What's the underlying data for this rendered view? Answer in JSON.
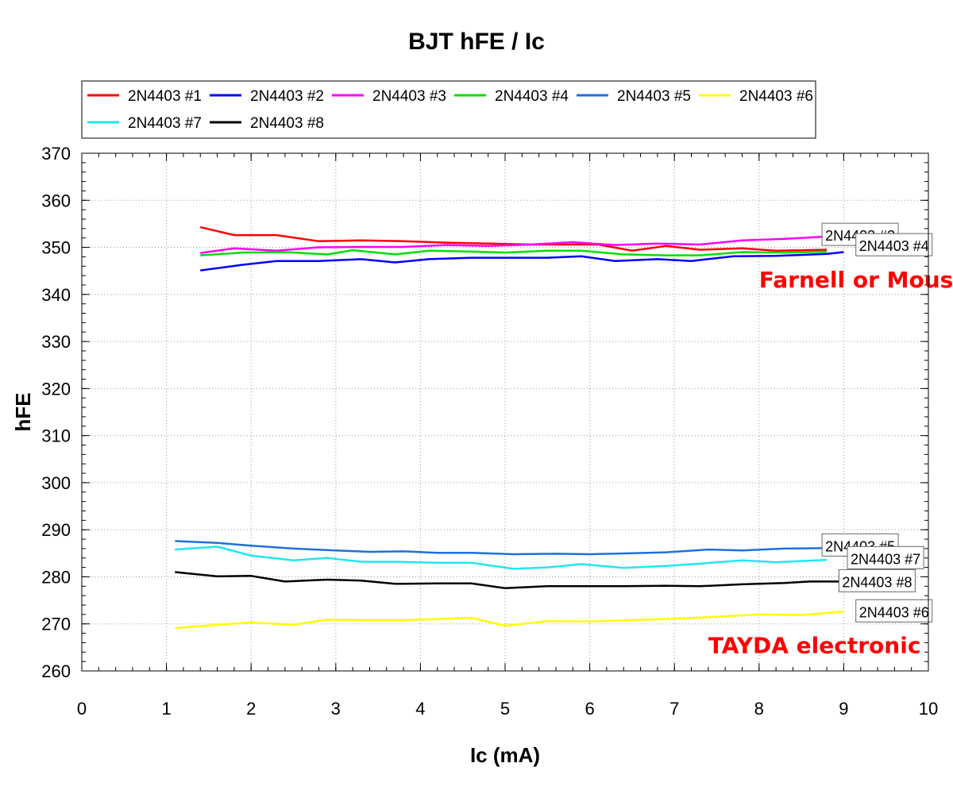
{
  "chart_data": {
    "type": "line",
    "title": "BJT hFE / Ic",
    "xlabel": "Ic (mA)",
    "ylabel": "hFE",
    "xlim": [
      0,
      10
    ],
    "ylim": [
      260,
      370
    ],
    "xticks": [
      0,
      1,
      2,
      3,
      4,
      5,
      6,
      7,
      8,
      9,
      10
    ],
    "yticks": [
      260,
      270,
      280,
      290,
      300,
      310,
      320,
      330,
      340,
      350,
      360,
      370
    ],
    "grid": true,
    "legend_position": "top",
    "series": [
      {
        "name": "2N4403 #1",
        "color": "#ff0000",
        "x": [
          1.4,
          1.8,
          2.3,
          2.8,
          3.3,
          3.8,
          4.3,
          4.8,
          5.3,
          5.8,
          6.1,
          6.5,
          6.9,
          7.3,
          7.8,
          8.2,
          8.8
        ],
        "y": [
          354.3,
          352.6,
          352.6,
          351.3,
          351.5,
          351.3,
          351.0,
          350.8,
          350.6,
          350.6,
          350.6,
          349.3,
          350.3,
          349.5,
          349.8,
          349.3,
          349.5
        ]
      },
      {
        "name": "2N4403 #2",
        "color": "#0000ff",
        "x": [
          1.4,
          1.9,
          2.3,
          2.8,
          3.3,
          3.7,
          4.1,
          4.6,
          5.0,
          5.5,
          5.9,
          6.3,
          6.8,
          7.2,
          7.7,
          8.2,
          8.8,
          9.0
        ],
        "y": [
          345.1,
          346.3,
          347.1,
          347.1,
          347.5,
          346.8,
          347.5,
          347.8,
          347.8,
          347.8,
          348.1,
          347.1,
          347.5,
          347.1,
          348.1,
          348.2,
          348.6,
          349.0
        ]
      },
      {
        "name": "2N4403 #3",
        "color": "#ff00ff",
        "x": [
          1.4,
          1.8,
          2.3,
          2.8,
          3.3,
          3.8,
          4.3,
          4.8,
          5.3,
          5.8,
          6.3,
          6.8,
          7.3,
          7.8,
          8.3,
          8.8
        ],
        "y": [
          348.8,
          349.8,
          349.3,
          350.0,
          350.1,
          350.1,
          350.5,
          350.3,
          350.6,
          351.1,
          350.5,
          350.8,
          350.6,
          351.5,
          351.8,
          352.3
        ]
      },
      {
        "name": "2N4403 #4",
        "color": "#00e000",
        "x": [
          1.4,
          1.9,
          2.4,
          2.9,
          3.2,
          3.7,
          4.1,
          4.6,
          5.0,
          5.5,
          5.9,
          6.4,
          6.9,
          7.3,
          7.8,
          8.3,
          8.8
        ],
        "y": [
          348.3,
          348.9,
          349.0,
          348.5,
          349.4,
          348.5,
          349.3,
          349.1,
          348.9,
          349.3,
          349.3,
          348.5,
          348.3,
          348.3,
          349.0,
          348.9,
          349.1
        ]
      },
      {
        "name": "2N4403 #5",
        "color": "#1f6fe0",
        "x": [
          1.1,
          1.6,
          2.0,
          2.5,
          3.0,
          3.4,
          3.8,
          4.2,
          4.6,
          5.1,
          5.6,
          6.0,
          6.5,
          6.9,
          7.4,
          7.8,
          8.3,
          8.8
        ],
        "y": [
          287.6,
          287.2,
          286.6,
          286.0,
          285.6,
          285.3,
          285.4,
          285.1,
          285.1,
          284.8,
          284.9,
          284.8,
          285.0,
          285.2,
          285.8,
          285.6,
          286.0,
          286.1
        ]
      },
      {
        "name": "2N4403 #6",
        "color": "#ffff00",
        "x": [
          1.1,
          1.6,
          2.0,
          2.5,
          2.9,
          3.4,
          3.8,
          4.2,
          4.6,
          5.0,
          5.5,
          6.0,
          6.5,
          7.0,
          7.5,
          8.0,
          8.5,
          9.0
        ],
        "y": [
          269.1,
          269.8,
          270.3,
          269.8,
          270.9,
          270.8,
          270.8,
          271.0,
          271.3,
          269.6,
          270.6,
          270.5,
          270.8,
          271.1,
          271.5,
          272.0,
          271.9,
          272.6
        ]
      },
      {
        "name": "2N4403 #7",
        "color": "#22e6f0",
        "x": [
          1.1,
          1.6,
          2.0,
          2.5,
          2.9,
          3.3,
          3.7,
          4.2,
          4.6,
          5.1,
          5.5,
          5.9,
          6.4,
          6.9,
          7.3,
          7.8,
          8.2,
          8.8
        ],
        "y": [
          285.8,
          286.4,
          284.5,
          283.5,
          284.0,
          283.2,
          283.2,
          283.0,
          283.0,
          281.7,
          282.0,
          282.7,
          281.9,
          282.3,
          282.8,
          283.5,
          283.1,
          283.6
        ]
      },
      {
        "name": "2N4403 #8",
        "color": "#000000",
        "x": [
          1.1,
          1.6,
          2.0,
          2.4,
          2.9,
          3.3,
          3.7,
          4.2,
          4.6,
          5.0,
          5.5,
          5.9,
          6.4,
          6.9,
          7.3,
          7.8,
          8.3,
          8.6,
          9.0
        ],
        "y": [
          281.0,
          280.1,
          280.2,
          279.0,
          279.4,
          279.2,
          278.5,
          278.6,
          278.6,
          277.6,
          278.0,
          278.0,
          278.0,
          278.1,
          278.0,
          278.4,
          278.7,
          279.0,
          279.0
        ]
      }
    ],
    "end_labels": [
      {
        "text": "2N4403 #3",
        "x": 8.8,
        "y": 352.6
      },
      {
        "text": "2N4403 #4",
        "x": 9.2,
        "y": 350.4
      },
      {
        "text": "2N4403 #5",
        "x": 8.8,
        "y": 286.6
      },
      {
        "text": "2N4403 #7",
        "x": 9.1,
        "y": 283.9
      },
      {
        "text": "2N4403 #8",
        "x": 9.0,
        "y": 279.0
      },
      {
        "text": "2N4403 #6",
        "x": 9.2,
        "y": 272.6
      }
    ],
    "annotations": [
      {
        "text": "Farnell or Mouser",
        "x": 8.0,
        "y": 341.5,
        "color": "#ff0000"
      },
      {
        "text": "TAYDA electronic",
        "x": 7.4,
        "y": 263.8,
        "color": "#ff0000"
      }
    ]
  }
}
